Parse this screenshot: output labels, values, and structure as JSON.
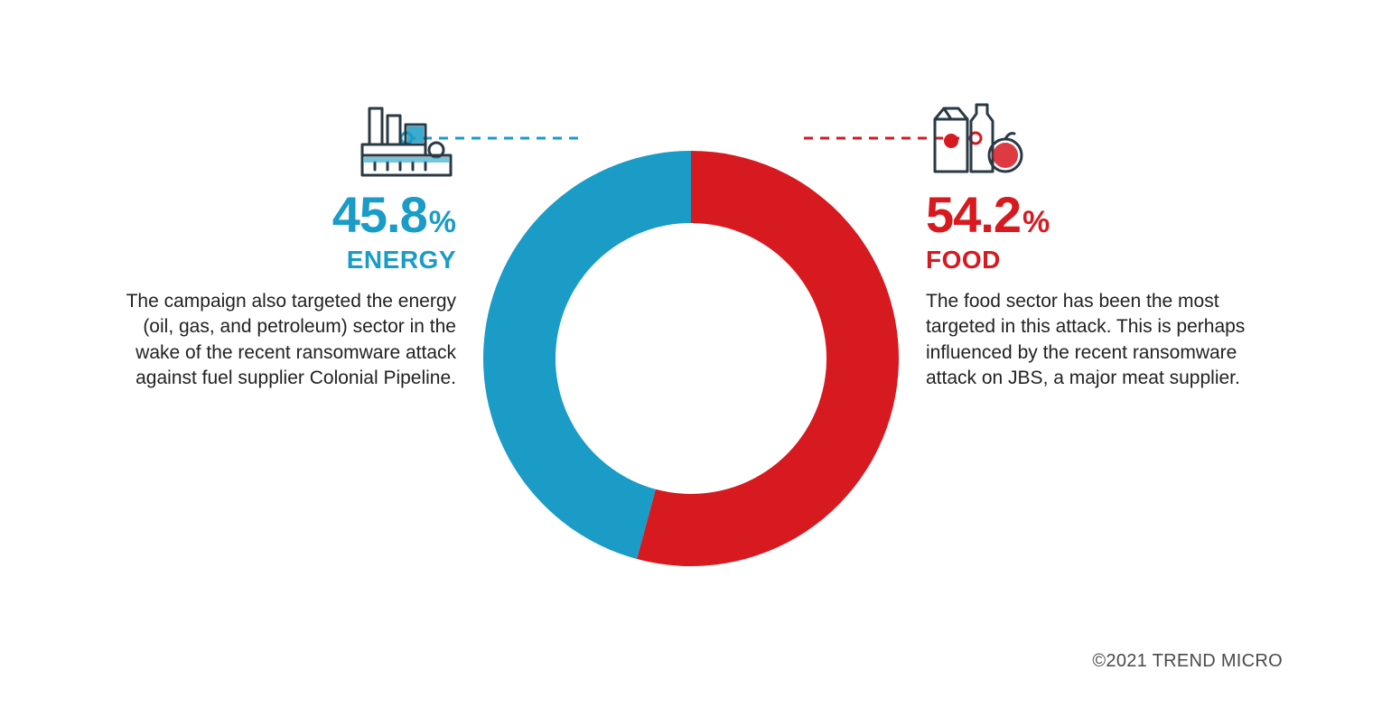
{
  "chart": {
    "type": "donut",
    "outer_radius": 230,
    "inner_radius": 150,
    "background_color": "#ffffff",
    "start_angle_deg": 0,
    "segments": [
      {
        "label": "FOOD",
        "value": 54.2,
        "color": "#d71920"
      },
      {
        "label": "ENERGY",
        "value": 45.8,
        "color": "#1a9cc7"
      }
    ]
  },
  "left": {
    "percent": "45.8",
    "percent_symbol": "%",
    "category": "ENERGY",
    "color": "#1a9cc7",
    "description": "The campaign also targeted the energy (oil, gas, and petroleum) sector in the wake of the recent ransomware attack against fuel supplier Colonial Pipeline.",
    "icon": "factory-icon"
  },
  "right": {
    "percent": "54.2",
    "percent_symbol": "%",
    "category": "FOOD",
    "color": "#d71920",
    "description": "The food sector has been the most targeted in this attack. This is perhaps influenced by the recent ransomware attack on JBS, a major meat supplier.",
    "icon": "groceries-icon"
  },
  "connectors": {
    "dash": "10,8",
    "stroke_width": 3,
    "dot_radius": 6,
    "dot_fill": "#ffffff",
    "dot_stroke_width": 3
  },
  "typography": {
    "percent_fontsize": 56,
    "percent_symbol_fontsize": 34,
    "category_fontsize": 28,
    "desc_fontsize": 21,
    "desc_color": "#222222",
    "copyright_fontsize": 20,
    "copyright_color": "#4a4a4a",
    "font_family": "Arial, Helvetica, sans-serif"
  },
  "copyright": "©2021 TREND MICRO"
}
